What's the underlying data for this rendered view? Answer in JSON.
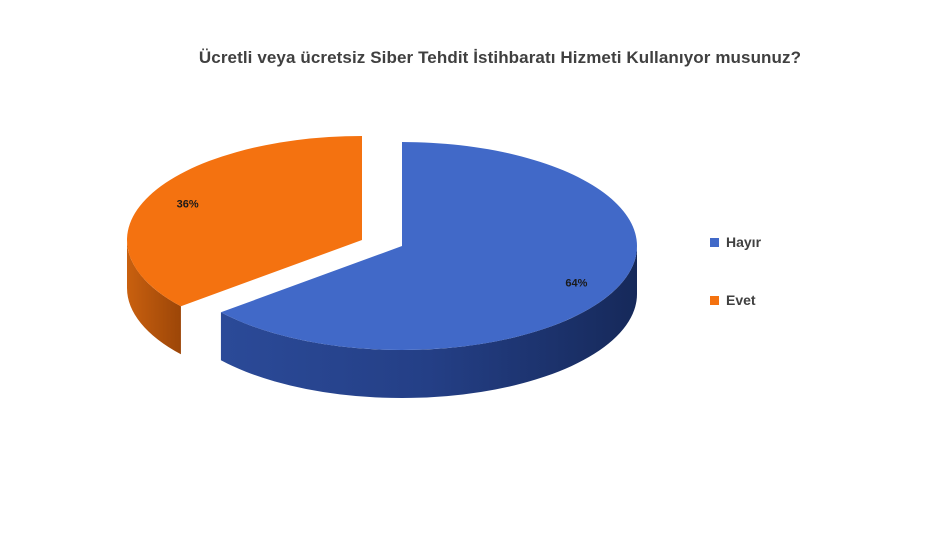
{
  "chart_data": {
    "type": "pie",
    "title": "Ücretli veya ücretsiz Siber Tehdit İstihbaratı Hizmeti Kullanıyor musunuz?",
    "slices": [
      {
        "label": "Hayır",
        "value": 64,
        "display": "64%",
        "color": "#4169c8",
        "side_color": "#1e3a78"
      },
      {
        "label": "Evet",
        "value": 36,
        "display": "36%",
        "color": "#f47210",
        "side_color": "#a94b0a"
      }
    ],
    "legend_position": "right"
  }
}
